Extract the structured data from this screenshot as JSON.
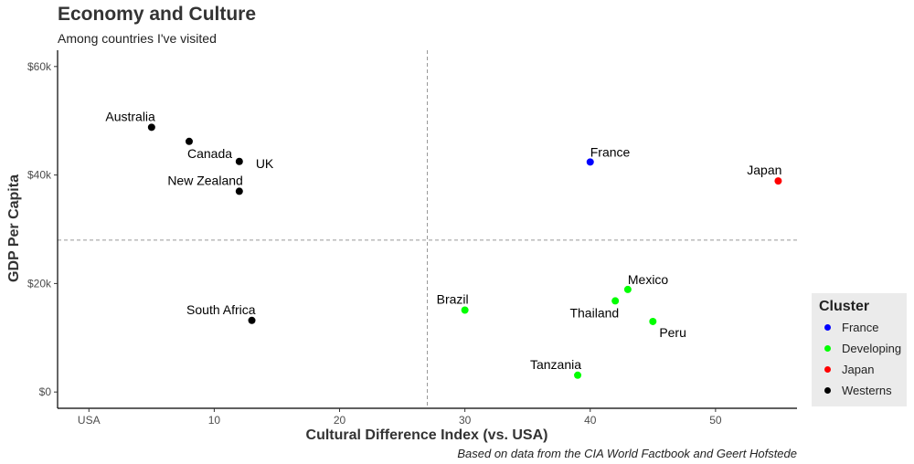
{
  "chart_data": {
    "type": "scatter",
    "title": "Economy and Culture",
    "subtitle": "Among countries I've visited",
    "caption": "Based on data from the CIA World Factbook and Geert Hofstede",
    "xlabel": "Cultural Difference Index (vs. USA)",
    "ylabel": "GDP Per Capita",
    "xlim": [
      -2.5,
      56.5
    ],
    "ylim": [
      -3000,
      63000
    ],
    "x_ticks": [
      {
        "value": 0,
        "label": "USA"
      },
      {
        "value": 10,
        "label": "10"
      },
      {
        "value": 20,
        "label": "20"
      },
      {
        "value": 30,
        "label": "30"
      },
      {
        "value": 40,
        "label": "40"
      },
      {
        "value": 50,
        "label": "50"
      }
    ],
    "y_ticks": [
      {
        "value": 0,
        "label": "$0"
      },
      {
        "value": 20000,
        "label": "$20k"
      },
      {
        "value": 40000,
        "label": "$40k"
      },
      {
        "value": 60000,
        "label": "$60k"
      }
    ],
    "reference_lines": {
      "vertical_x": 27,
      "horizontal_y": 28000,
      "style": "dashed"
    },
    "grid": false,
    "legend": {
      "title": "Cluster",
      "placement": "right",
      "entries": [
        {
          "name": "France",
          "color": "#0000ff"
        },
        {
          "name": "Developing",
          "color": "#00ff00"
        },
        {
          "name": "Japan",
          "color": "#ff0000"
        },
        {
          "name": "Westerns",
          "color": "#000000"
        }
      ]
    },
    "points": [
      {
        "label": "Australia",
        "x": 5,
        "y": 48800,
        "cluster": "Westerns",
        "label_pos": "above-left"
      },
      {
        "label": "Canada",
        "x": 8,
        "y": 46200,
        "cluster": "Westerns",
        "label_pos": "below-right"
      },
      {
        "label": "UK",
        "x": 12,
        "y": 42500,
        "cluster": "Westerns",
        "label_pos": "right"
      },
      {
        "label": "New Zealand",
        "x": 12,
        "y": 37000,
        "cluster": "Westerns",
        "label_pos": "above-left"
      },
      {
        "label": "South Africa",
        "x": 13,
        "y": 13200,
        "cluster": "Westerns",
        "label_pos": "above-left"
      },
      {
        "label": "France",
        "x": 40,
        "y": 42400,
        "cluster": "France",
        "label_pos": "above-right"
      },
      {
        "label": "Japan",
        "x": 55,
        "y": 38900,
        "cluster": "Japan",
        "label_pos": "above-left"
      },
      {
        "label": "Brazil",
        "x": 30,
        "y": 15100,
        "cluster": "Developing",
        "label_pos": "above-left"
      },
      {
        "label": "Mexico",
        "x": 43,
        "y": 18900,
        "cluster": "Developing",
        "label_pos": "above-right"
      },
      {
        "label": "Thailand",
        "x": 42,
        "y": 16800,
        "cluster": "Developing",
        "label_pos": "below-left"
      },
      {
        "label": "Peru",
        "x": 45,
        "y": 13000,
        "cluster": "Developing",
        "label_pos": "below-right"
      },
      {
        "label": "Tanzania",
        "x": 39,
        "y": 3100,
        "cluster": "Developing",
        "label_pos": "above-left"
      }
    ]
  }
}
